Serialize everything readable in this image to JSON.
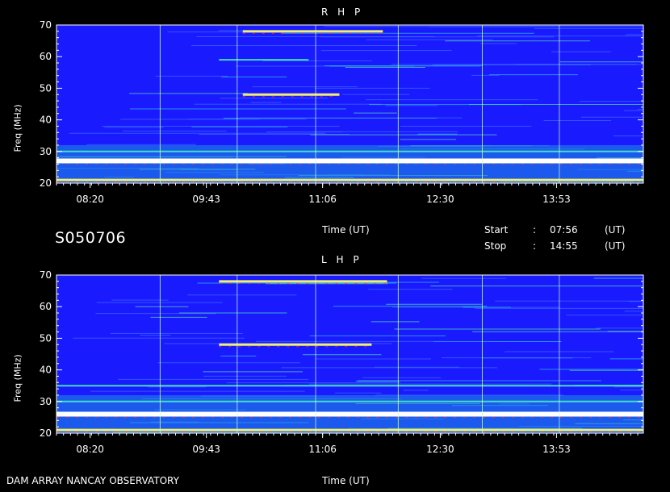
{
  "source": "DAM ARRAY   NANCAY OBSERVATORY",
  "date_code": "S050706",
  "time_label": "Time (UT)",
  "start": {
    "label": "Start",
    "sep": ":",
    "value": "07:56",
    "unit": "(UT)"
  },
  "stop": {
    "label": "Stop",
    "sep": ":",
    "value": "14:55",
    "unit": "(UT)"
  },
  "colors": {
    "background": "#1a1aff",
    "axis": "#ffffff",
    "page": "#000000"
  },
  "chart_data": [
    {
      "type": "heatmap",
      "title": "R H P",
      "ylabel": "Freq (MHz)",
      "xlabel": "Time (UT)",
      "ylim": [
        20,
        70
      ],
      "yticks": [
        20,
        30,
        40,
        50,
        60,
        70
      ],
      "xlim": [
        "07:56",
        "14:55"
      ],
      "xticks": [
        "08:20",
        "09:43",
        "11:06",
        "12:30",
        "13:53"
      ],
      "bands": [
        {
          "freq": 27,
          "start": "07:56",
          "end": "14:55",
          "level": "max"
        },
        {
          "freq": 21,
          "start": "07:56",
          "end": "14:55",
          "level": "high"
        },
        {
          "freq": 48,
          "start": "10:09",
          "end": "11:18",
          "level": "high"
        },
        {
          "freq": 68,
          "start": "10:09",
          "end": "11:49",
          "level": "high"
        },
        {
          "freq": 30,
          "start": "07:56",
          "end": "14:55",
          "level": "mid"
        },
        {
          "freq": 59,
          "start": "09:52",
          "end": "10:56",
          "level": "mid"
        }
      ],
      "verticals": [
        "09:10",
        "10:05",
        "11:01",
        "12:00",
        "13:00",
        "13:55"
      ]
    },
    {
      "type": "heatmap",
      "title": "L H P",
      "ylabel": "Freq (MHz)",
      "xlabel": "Time (UT)",
      "ylim": [
        20,
        70
      ],
      "yticks": [
        20,
        30,
        40,
        50,
        60,
        70
      ],
      "xlim": [
        "07:56",
        "14:55"
      ],
      "xticks": [
        "08:20",
        "09:43",
        "11:06",
        "12:30",
        "13:53"
      ],
      "bands": [
        {
          "freq": 26,
          "start": "07:56",
          "end": "14:55",
          "level": "max"
        },
        {
          "freq": 21,
          "start": "07:56",
          "end": "14:55",
          "level": "high"
        },
        {
          "freq": 48,
          "start": "09:52",
          "end": "11:41",
          "level": "high"
        },
        {
          "freq": 68,
          "start": "09:52",
          "end": "11:52",
          "level": "high"
        },
        {
          "freq": 30,
          "start": "07:56",
          "end": "14:55",
          "level": "mid"
        },
        {
          "freq": 35,
          "start": "07:56",
          "end": "14:55",
          "level": "mid"
        }
      ],
      "verticals": [
        "09:10",
        "10:05",
        "11:01",
        "12:00",
        "13:00",
        "13:55"
      ]
    }
  ]
}
